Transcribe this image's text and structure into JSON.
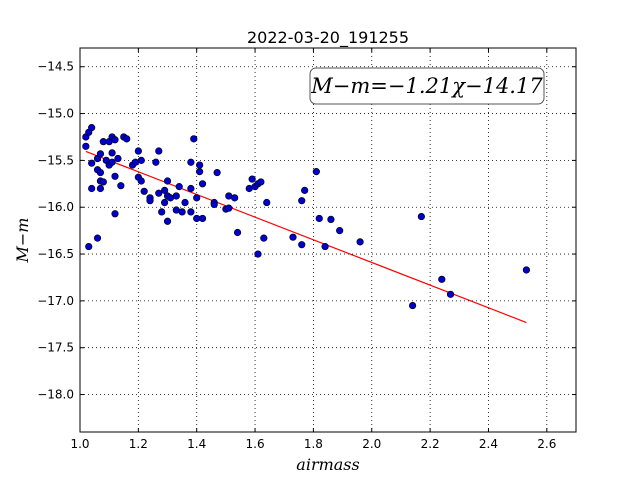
{
  "chart_data": {
    "type": "scatter",
    "title": "2022-03-20_191255",
    "xlabel": "airmass",
    "ylabel": "M−m",
    "xlim": [
      1.0,
      2.7
    ],
    "ylim": [
      -18.4,
      -14.3
    ],
    "y_inverted": true,
    "grid": true,
    "x_ticks": [
      "1.0",
      "1.2",
      "1.4",
      "1.6",
      "1.8",
      "2.0",
      "2.2",
      "2.4",
      "2.6"
    ],
    "y_ticks": [
      "−14.5",
      "−15.0",
      "−15.5",
      "−16.0",
      "−16.5",
      "−17.0",
      "−17.5",
      "−18.0"
    ],
    "annotation": "M−m=−1.21χ−14.17",
    "fit": {
      "slope": -1.21,
      "intercept": -14.17,
      "x_range": [
        1.02,
        2.53
      ],
      "color": "#ff0000"
    },
    "point_color": "#0000cc",
    "points": [
      [
        1.02,
        -15.35
      ],
      [
        1.02,
        -15.25
      ],
      [
        1.03,
        -15.2
      ],
      [
        1.04,
        -15.15
      ],
      [
        1.03,
        -16.42
      ],
      [
        1.04,
        -15.8
      ],
      [
        1.04,
        -15.53
      ],
      [
        1.06,
        -15.48
      ],
      [
        1.07,
        -15.43
      ],
      [
        1.06,
        -15.6
      ],
      [
        1.07,
        -15.63
      ],
      [
        1.07,
        -15.72
      ],
      [
        1.08,
        -15.73
      ],
      [
        1.07,
        -15.8
      ],
      [
        1.06,
        -16.33
      ],
      [
        1.08,
        -15.3
      ],
      [
        1.09,
        -15.5
      ],
      [
        1.1,
        -15.55
      ],
      [
        1.1,
        -15.3
      ],
      [
        1.11,
        -15.25
      ],
      [
        1.11,
        -15.42
      ],
      [
        1.12,
        -15.28
      ],
      [
        1.11,
        -15.52
      ],
      [
        1.13,
        -15.48
      ],
      [
        1.12,
        -15.67
      ],
      [
        1.14,
        -15.77
      ],
      [
        1.12,
        -16.07
      ],
      [
        1.15,
        -15.25
      ],
      [
        1.16,
        -15.27
      ],
      [
        1.18,
        -15.55
      ],
      [
        1.19,
        -15.52
      ],
      [
        1.2,
        -15.4
      ],
      [
        1.2,
        -15.68
      ],
      [
        1.21,
        -15.5
      ],
      [
        1.21,
        -15.72
      ],
      [
        1.22,
        -15.83
      ],
      [
        1.24,
        -15.9
      ],
      [
        1.24,
        -15.93
      ],
      [
        1.26,
        -15.52
      ],
      [
        1.27,
        -15.4
      ],
      [
        1.27,
        -15.85
      ],
      [
        1.28,
        -16.05
      ],
      [
        1.29,
        -15.82
      ],
      [
        1.3,
        -15.72
      ],
      [
        1.3,
        -15.88
      ],
      [
        1.29,
        -15.95
      ],
      [
        1.3,
        -16.15
      ],
      [
        1.31,
        -15.9
      ],
      [
        1.33,
        -15.88
      ],
      [
        1.33,
        -16.03
      ],
      [
        1.34,
        -15.78
      ],
      [
        1.35,
        -16.05
      ],
      [
        1.36,
        -15.95
      ],
      [
        1.38,
        -15.8
      ],
      [
        1.38,
        -16.05
      ],
      [
        1.38,
        -15.52
      ],
      [
        1.39,
        -15.27
      ],
      [
        1.4,
        -15.9
      ],
      [
        1.4,
        -16.12
      ],
      [
        1.41,
        -15.55
      ],
      [
        1.41,
        -15.62
      ],
      [
        1.42,
        -15.75
      ],
      [
        1.42,
        -16.12
      ],
      [
        1.46,
        -15.95
      ],
      [
        1.46,
        -15.97
      ],
      [
        1.47,
        -15.63
      ],
      [
        1.5,
        -16.02
      ],
      [
        1.51,
        -16.01
      ],
      [
        1.51,
        -15.88
      ],
      [
        1.53,
        -15.9
      ],
      [
        1.54,
        -16.27
      ],
      [
        1.58,
        -15.8
      ],
      [
        1.59,
        -15.7
      ],
      [
        1.6,
        -15.78
      ],
      [
        1.61,
        -15.75
      ],
      [
        1.61,
        -16.5
      ],
      [
        1.62,
        -15.73
      ],
      [
        1.63,
        -16.33
      ],
      [
        1.64,
        -15.95
      ],
      [
        1.73,
        -16.32
      ],
      [
        1.76,
        -15.93
      ],
      [
        1.76,
        -16.4
      ],
      [
        1.77,
        -15.82
      ],
      [
        1.81,
        -15.62
      ],
      [
        1.82,
        -16.12
      ],
      [
        1.84,
        -16.42
      ],
      [
        1.86,
        -16.13
      ],
      [
        1.89,
        -16.25
      ],
      [
        1.96,
        -16.37
      ],
      [
        2.14,
        -17.05
      ],
      [
        2.17,
        -16.1
      ],
      [
        2.24,
        -16.77
      ],
      [
        2.27,
        -16.93
      ],
      [
        2.53,
        -16.67
      ]
    ]
  }
}
